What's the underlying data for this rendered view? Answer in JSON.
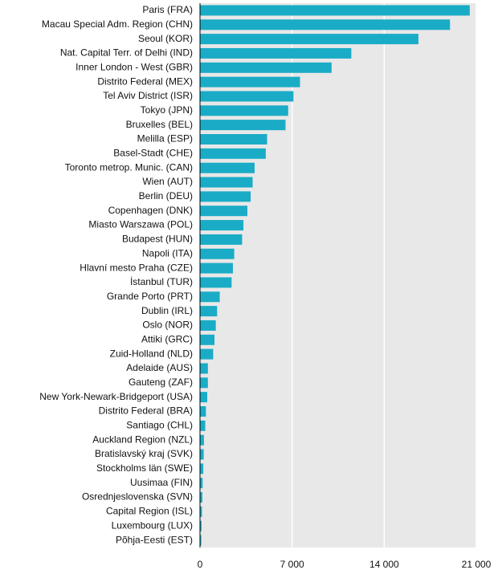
{
  "chart_data": {
    "type": "barh",
    "categories": [
      "Paris (FRA)",
      "Macau Special Adm. Region (CHN)",
      "Seoul (KOR)",
      "Nat. Capital Terr. of Delhi (IND)",
      "Inner London - West (GBR)",
      "Distrito Federal (MEX)",
      "Tel Aviv District (ISR)",
      "Tokyo (JPN)",
      "Bruxelles (BEL)",
      "Melilla (ESP)",
      "Basel-Stadt (CHE)",
      "Toronto metrop. Munic. (CAN)",
      "Wien (AUT)",
      "Berlin (DEU)",
      "Copenhagen (DNK)",
      "Miasto Warszawa (POL)",
      "Budapest (HUN)",
      "Napoli (ITA)",
      "Hlavní mesto Praha (CZE)",
      "İstanbul (TUR)",
      "Grande Porto (PRT)",
      "Dublin (IRL)",
      "Oslo (NOR)",
      "Attiki (GRC)",
      "Zuid-Holland (NLD)",
      "Adelaide (AUS)",
      "Gauteng (ZAF)",
      "New York-Newark-Bridgeport (USA)",
      "Distrito Federal (BRA)",
      "Santiago (CHL)",
      "Auckland Region (NZL)",
      "Bratislavský kraj (SVK)",
      "Stockholms län (SWE)",
      "Uusimaa (FIN)",
      "Osrednjeslovenska (SVN)",
      "Capital Region (ISL)",
      "Luxembourg (LUX)",
      "Põhja-Eesti (EST)"
    ],
    "values": [
      20500,
      19000,
      16600,
      11500,
      10000,
      7600,
      7100,
      6700,
      6500,
      5100,
      5000,
      4150,
      4000,
      3850,
      3600,
      3300,
      3200,
      2600,
      2500,
      2400,
      1500,
      1300,
      1200,
      1100,
      1000,
      600,
      600,
      550,
      450,
      400,
      300,
      280,
      250,
      200,
      180,
      150,
      120,
      100
    ],
    "color": "#1aacc6",
    "xlim": [
      0,
      21000
    ],
    "xticks": [
      0,
      {
        "value": 7000,
        "label": "7 000"
      },
      {
        "value": 14000,
        "label": "14 000"
      },
      {
        "value": 21000,
        "label": "21 000"
      }
    ],
    "grid": true
  }
}
